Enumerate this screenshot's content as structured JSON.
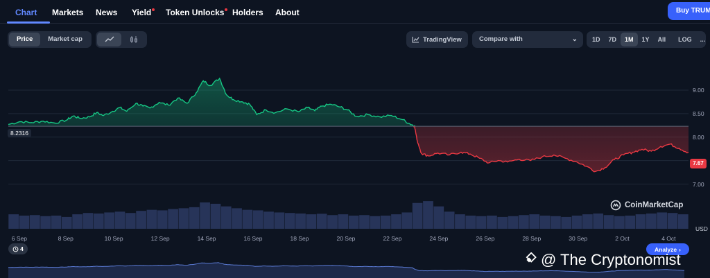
{
  "nav": {
    "tabs": [
      {
        "label": "Chart",
        "active": true,
        "dot": false
      },
      {
        "label": "Markets",
        "active": false,
        "dot": false
      },
      {
        "label": "News",
        "active": false,
        "dot": false
      },
      {
        "label": "Yield",
        "active": false,
        "dot": true
      },
      {
        "label": "Token Unlocks",
        "active": false,
        "dot": true
      },
      {
        "label": "Holders",
        "active": false,
        "dot": false
      },
      {
        "label": "About",
        "active": false,
        "dot": false
      }
    ],
    "buy_label": "Buy TRUMP"
  },
  "toolbar": {
    "type_options": [
      "Price",
      "Market cap"
    ],
    "type_selected": "Price",
    "view_icons": [
      "line-chart-icon",
      "candlestick-icon"
    ],
    "tradingview_label": "TradingView",
    "compare_label": "Compare with",
    "ranges": [
      "1D",
      "7D",
      "1M",
      "1Y",
      "All"
    ],
    "range_selected": "1M",
    "log_label": "LOG",
    "more_label": "..."
  },
  "chart_data": {
    "type": "area",
    "reference_value": 8.2316,
    "reference_label": "8.2316",
    "last_value": 7.67,
    "last_label": "7.67",
    "y_ticks": [
      "9.00",
      "8.50",
      "8.00",
      "7.50",
      "7.00"
    ],
    "ylim": [
      6.55,
      9.65
    ],
    "x_ticks": [
      "6 Sep",
      "8 Sep",
      "10 Sep",
      "12 Sep",
      "14 Sep",
      "16 Sep",
      "18 Sep",
      "20 Sep",
      "22 Sep",
      "24 Sep",
      "26 Sep",
      "28 Sep",
      "30 Sep",
      "2 Oct",
      "4 Oct"
    ],
    "x_start_day": 5.5,
    "x_end_day": 34.8,
    "series": [
      {
        "points": [
          [
            5.5,
            8.27
          ],
          [
            6.0,
            8.33
          ],
          [
            6.5,
            8.31
          ],
          [
            7.0,
            8.34
          ],
          [
            7.5,
            8.3
          ],
          [
            8.0,
            8.36
          ],
          [
            8.3,
            8.45
          ],
          [
            8.6,
            8.4
          ],
          [
            9.0,
            8.43
          ],
          [
            9.3,
            8.52
          ],
          [
            9.6,
            8.46
          ],
          [
            10.0,
            8.55
          ],
          [
            10.3,
            8.63
          ],
          [
            10.6,
            8.55
          ],
          [
            11.0,
            8.72
          ],
          [
            11.3,
            8.66
          ],
          [
            11.6,
            8.62
          ],
          [
            12.0,
            8.74
          ],
          [
            12.4,
            8.68
          ],
          [
            12.8,
            8.83
          ],
          [
            13.2,
            8.72
          ],
          [
            13.6,
            8.95
          ],
          [
            13.9,
            9.2
          ],
          [
            14.2,
            9.1
          ],
          [
            14.6,
            9.25
          ],
          [
            14.9,
            8.9
          ],
          [
            15.2,
            8.8
          ],
          [
            15.6,
            8.75
          ],
          [
            15.9,
            8.7
          ],
          [
            16.2,
            8.48
          ],
          [
            16.6,
            8.58
          ],
          [
            17.0,
            8.52
          ],
          [
            17.5,
            8.6
          ],
          [
            18.0,
            8.54
          ],
          [
            18.4,
            8.63
          ],
          [
            18.7,
            8.56
          ],
          [
            19.0,
            8.66
          ],
          [
            19.4,
            8.7
          ],
          [
            19.8,
            8.64
          ],
          [
            20.1,
            8.58
          ],
          [
            20.5,
            8.44
          ],
          [
            21.0,
            8.48
          ],
          [
            21.5,
            8.43
          ],
          [
            22.0,
            8.46
          ],
          [
            22.5,
            8.37
          ],
          [
            22.8,
            8.28
          ],
          [
            23.0,
            8.24
          ],
          [
            23.1,
            7.95
          ],
          [
            23.3,
            7.65
          ],
          [
            23.6,
            7.6
          ],
          [
            24.0,
            7.66
          ],
          [
            24.5,
            7.62
          ],
          [
            25.0,
            7.68
          ],
          [
            25.4,
            7.64
          ],
          [
            25.8,
            7.55
          ],
          [
            26.2,
            7.45
          ],
          [
            26.6,
            7.5
          ],
          [
            27.0,
            7.47
          ],
          [
            27.5,
            7.53
          ],
          [
            28.0,
            7.5
          ],
          [
            28.5,
            7.58
          ],
          [
            29.0,
            7.62
          ],
          [
            29.5,
            7.55
          ],
          [
            30.0,
            7.47
          ],
          [
            30.4,
            7.38
          ],
          [
            30.8,
            7.27
          ],
          [
            31.2,
            7.35
          ],
          [
            31.6,
            7.52
          ],
          [
            32.0,
            7.62
          ],
          [
            32.4,
            7.68
          ],
          [
            32.8,
            7.74
          ],
          [
            33.2,
            7.7
          ],
          [
            33.6,
            7.8
          ],
          [
            34.0,
            7.85
          ],
          [
            34.4,
            7.76
          ],
          [
            34.8,
            7.67
          ]
        ]
      }
    ],
    "volume": [
      0.55,
      0.5,
      0.52,
      0.48,
      0.5,
      0.45,
      0.55,
      0.6,
      0.58,
      0.62,
      0.65,
      0.6,
      0.68,
      0.72,
      0.7,
      0.75,
      0.78,
      0.82,
      1.0,
      0.95,
      0.85,
      0.78,
      0.72,
      0.7,
      0.65,
      0.62,
      0.6,
      0.58,
      0.55,
      0.57,
      0.52,
      0.55,
      0.5,
      0.52,
      0.48,
      0.5,
      0.55,
      0.62,
      0.98,
      1.05,
      0.85,
      0.65,
      0.55,
      0.5,
      0.48,
      0.5,
      0.45,
      0.48,
      0.52,
      0.55,
      0.5,
      0.48,
      0.45,
      0.5,
      0.55,
      0.58,
      0.52,
      0.48,
      0.5,
      0.55,
      0.58,
      0.62,
      0.6,
      0.55
    ],
    "ylabel": "USD",
    "grid": true
  },
  "watermark": "CoinMarketCap",
  "bottom": {
    "badge_count": "4",
    "analyze_label": "Analyze",
    "brand_text": "@ The Cryptonomist"
  },
  "colors": {
    "up": "#16c784",
    "down": "#ea3943",
    "accent": "#3861fb",
    "background": "#0d1421"
  }
}
